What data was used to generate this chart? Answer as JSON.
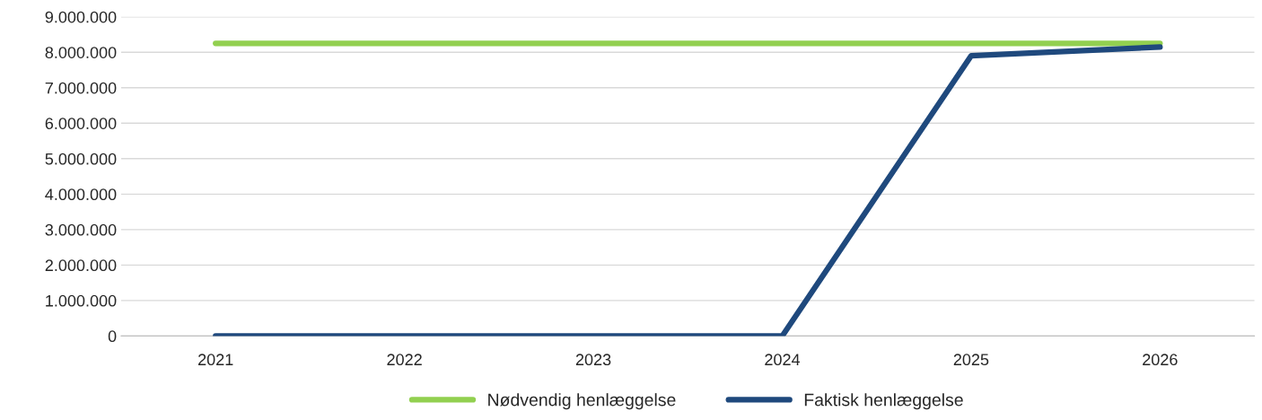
{
  "chart_data": {
    "type": "line",
    "categories": [
      "2021",
      "2022",
      "2023",
      "2024",
      "2025",
      "2026"
    ],
    "series": [
      {
        "name": "Nødvendig henlæggelse",
        "color": "#92d050",
        "values": [
          8250000,
          8250000,
          8250000,
          8250000,
          8250000,
          8250000
        ]
      },
      {
        "name": "Faktisk henlæggelse",
        "color": "#1f497d",
        "values": [
          0,
          0,
          0,
          0,
          7900000,
          8150000
        ]
      }
    ],
    "ylim": [
      0,
      9000000
    ],
    "yticks": [
      0,
      {
        "value": 1000000,
        "label": "1.000.000"
      },
      {
        "value": 2000000,
        "label": "2.000.000"
      },
      {
        "value": 3000000,
        "label": "3.000.000"
      },
      {
        "value": 4000000,
        "label": "4.000.000"
      },
      {
        "value": 5000000,
        "label": "5.000.000"
      },
      {
        "value": 6000000,
        "label": "6.000.000"
      },
      {
        "value": 7000000,
        "label": "7.000.000"
      },
      {
        "value": 8000000,
        "label": "8.000.000"
      },
      {
        "value": 9000000,
        "label": "9.000.000"
      }
    ],
    "grid": "y",
    "legend": "bottom",
    "marker": "none",
    "line_style": "solid"
  }
}
